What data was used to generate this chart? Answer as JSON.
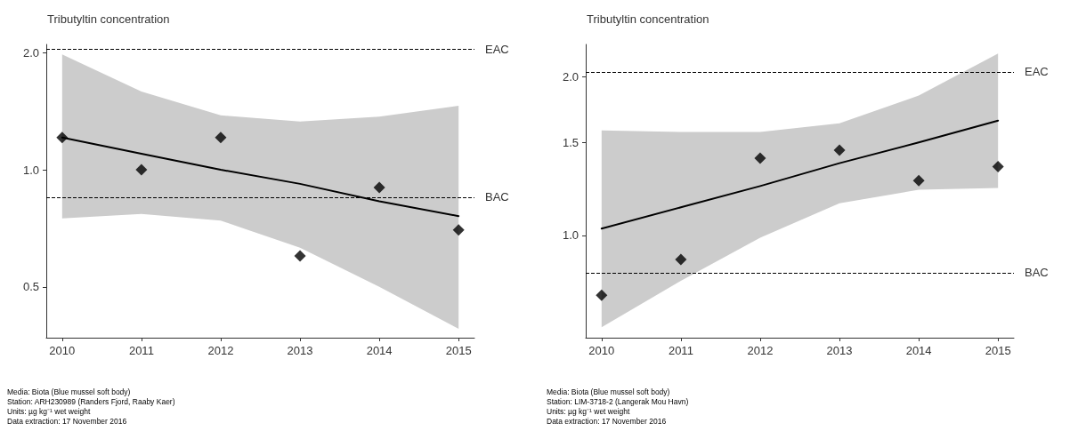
{
  "chart_data": [
    {
      "type": "scatter",
      "title": "Tributyltin concentration",
      "x": [
        2010,
        2011,
        2012,
        2013,
        2014,
        2015
      ],
      "series": [
        {
          "color": "#000000",
          "marker": "diamond",
          "values": [
            1.21,
            1.0,
            1.21,
            0.6,
            0.9,
            0.7
          ]
        },
        {
          "type": "line",
          "marker": "none",
          "color": "#000000",
          "values": [
            1.21,
            1.1,
            1.0,
            0.92,
            0.83,
            0.76
          ],
          "lower": [
            0.75,
            0.77,
            0.74,
            0.63,
            0.5,
            0.39
          ],
          "upper": [
            1.98,
            1.59,
            1.38,
            1.33,
            1.37,
            1.46
          ]
        }
      ],
      "xlim": [
        2009.8,
        2015.2
      ],
      "xticks": [
        2010,
        2011,
        2012,
        2013,
        2014,
        2015
      ],
      "ylim": [
        0.37,
        2.1
      ],
      "yticks": [
        {
          "value": 0.5,
          "label": "0.5"
        },
        {
          "value": 1,
          "label": "1.0"
        },
        {
          "value": 2,
          "label": "2.0"
        }
      ],
      "log": true,
      "grid": false,
      "ref_lines": [
        {
          "axis": "y",
          "value": 2.04,
          "label": "EAC",
          "line_style": "dashed",
          "color": "#000000"
        },
        {
          "axis": "y",
          "value": 0.85,
          "label": "BAC",
          "line_style": "dashed",
          "color": "#000000"
        }
      ],
      "annotations": [
        "Media: Biota (Blue mussel soft body)",
        "Station: ARH230989 (Randers Fjord, Raaby Kaer)",
        "Units: µg kg⁻¹ wet weight",
        "Data extraction: 17 November 2016"
      ]
    },
    {
      "type": "scatter",
      "title": "Tributyltin concentration",
      "x": [
        2010,
        2011,
        2012,
        2013,
        2014,
        2015
      ],
      "series": [
        {
          "color": "#000000",
          "marker": "diamond",
          "values": [
            0.77,
            0.9,
            1.4,
            1.45,
            1.27,
            1.35
          ]
        },
        {
          "type": "line",
          "marker": "none",
          "color": "#000000",
          "values": [
            1.03,
            1.13,
            1.24,
            1.37,
            1.5,
            1.65
          ],
          "lower": [
            0.67,
            0.82,
            0.99,
            1.15,
            1.22,
            1.23
          ],
          "upper": [
            1.58,
            1.57,
            1.57,
            1.63,
            1.84,
            2.21
          ]
        }
      ],
      "xlim": [
        2009.8,
        2015.2
      ],
      "xticks": [
        2010,
        2011,
        2012,
        2013,
        2014,
        2015
      ],
      "ylim": [
        0.64,
        2.3
      ],
      "yticks": [
        {
          "value": 1,
          "label": "1.0"
        },
        {
          "value": 1.5,
          "label": "1.5"
        },
        {
          "value": 2,
          "label": "2.0"
        }
      ],
      "log": true,
      "grid": false,
      "ref_lines": [
        {
          "axis": "y",
          "value": 2.04,
          "label": "EAC",
          "line_style": "dashed",
          "color": "#000000"
        },
        {
          "axis": "y",
          "value": 0.85,
          "label": "BAC",
          "line_style": "dashed",
          "color": "#000000"
        }
      ],
      "annotations": [
        "Media: Biota (Blue mussel soft body)",
        "Station: LIM-3718-2 (Langerak Mou Havn)",
        "Units: µg kg⁻¹ wet weight",
        "Data extraction: 17 November 2016"
      ]
    }
  ]
}
